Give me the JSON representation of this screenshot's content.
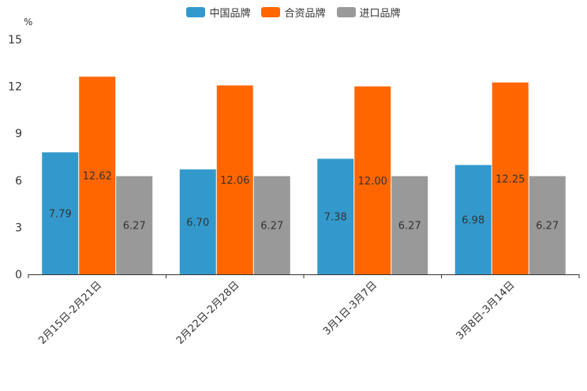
{
  "chart_data": {
    "type": "bar",
    "unit": "%",
    "categories": [
      "2月15日-2月21日",
      "2月22日-2月28日",
      "3月1日-3月7日",
      "3月8日-3月14日"
    ],
    "series": [
      {
        "name": "中国品牌",
        "color": "#3399cc",
        "values": [
          7.79,
          6.7,
          7.38,
          6.98
        ],
        "labels": [
          "7.79",
          "6.70",
          "7.38",
          "6.98"
        ]
      },
      {
        "name": "合资品牌",
        "color": "#ff6600",
        "values": [
          12.62,
          12.06,
          12.0,
          12.25
        ],
        "labels": [
          "12.62",
          "12.06",
          "12.00",
          "12.25"
        ]
      },
      {
        "name": "进口品牌",
        "color": "#999999",
        "values": [
          6.27,
          6.27,
          6.27,
          6.27
        ],
        "labels": [
          "6.27",
          "6.27",
          "6.27",
          "6.27"
        ]
      }
    ],
    "ylim": [
      0,
      15
    ],
    "yticks": [
      0,
      3,
      6,
      9,
      12,
      15
    ],
    "legend_position": "top-center"
  }
}
